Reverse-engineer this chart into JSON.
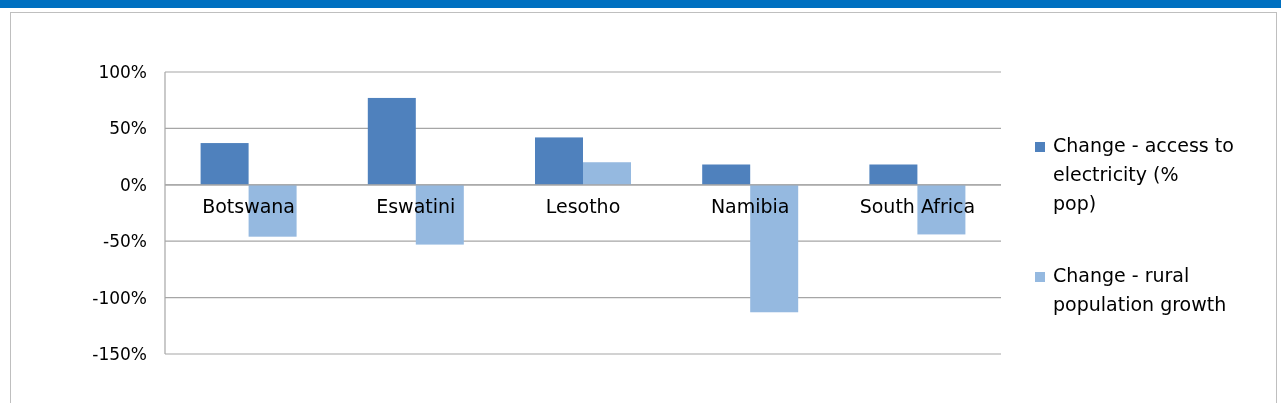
{
  "chart_data": {
    "type": "bar",
    "categories": [
      "Botswana",
      "Eswatini",
      "Lesotho",
      "Namibia",
      "South Africa"
    ],
    "series": [
      {
        "name": "Change - access to electricity (% pop)",
        "color": "#4f81bd",
        "values": [
          37,
          77,
          42,
          18,
          18
        ]
      },
      {
        "name": "Change - rural population growth",
        "color": "#95b9e0",
        "values": [
          -46,
          -53,
          20,
          -113,
          -44
        ]
      }
    ],
    "ylim": [
      -150,
      100
    ],
    "yticks": [
      {
        "value": -150,
        "label": "-150%"
      },
      {
        "value": -100,
        "label": "-100%"
      },
      {
        "value": -50,
        "label": "-50%"
      },
      {
        "value": 0,
        "label": "0%"
      },
      {
        "value": 50,
        "label": "50%"
      },
      {
        "value": 100,
        "label": "100%"
      }
    ],
    "grid": "y",
    "legend": "right"
  }
}
